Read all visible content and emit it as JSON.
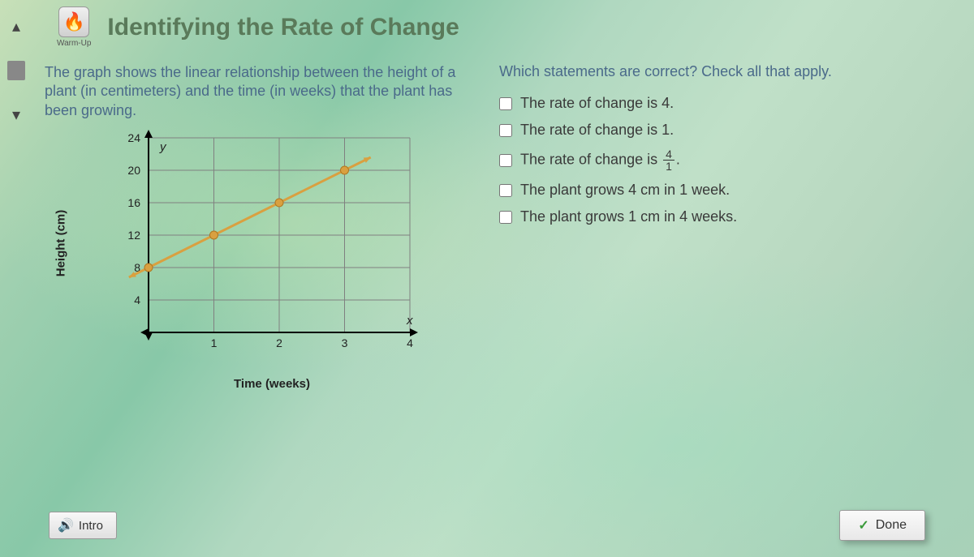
{
  "header": {
    "warmup_label": "Warm-Up",
    "title": "Identifying the Rate of Change"
  },
  "prompt": "The graph shows the linear relationship between the height of a plant (in centimeters) and the time (in weeks) that the plant has been growing.",
  "question": "Which statements are correct? Check all that apply.",
  "options": [
    {
      "text": "The rate of change is 4.",
      "frac": null
    },
    {
      "text": "The rate of change is 1.",
      "frac": null
    },
    {
      "text_prefix": "The rate of change is ",
      "frac": {
        "num": "4",
        "den": "1"
      },
      "text_suffix": "."
    },
    {
      "text": "The plant grows 4 cm in 1 week.",
      "frac": null
    },
    {
      "text": "The plant grows 1 cm in 4 weeks.",
      "frac": null
    }
  ],
  "chart": {
    "type": "line",
    "xlabel": "Time (weeks)",
    "ylabel": "Height (cm)",
    "y_axis_var": "y",
    "x_axis_var": "x",
    "xlim": [
      0,
      4
    ],
    "ylim": [
      0,
      24
    ],
    "ytick_step": 4,
    "xtick_step": 1,
    "yticks": [
      4,
      8,
      12,
      16,
      20,
      24
    ],
    "xticks": [
      1,
      2,
      3,
      4
    ],
    "points": [
      {
        "x": 0,
        "y": 8
      },
      {
        "x": 1,
        "y": 12
      },
      {
        "x": 2,
        "y": 16
      },
      {
        "x": 3,
        "y": 20
      }
    ],
    "line_start": {
      "x": -0.3,
      "y": 6.8
    },
    "line_end": {
      "x": 3.4,
      "y": 21.6
    },
    "line_color": "#d9a040",
    "line_width": 3,
    "marker_color": "#d9a040",
    "marker_radius": 5,
    "grid_color": "#808080",
    "axis_color": "#000000",
    "background": "transparent",
    "label_fontsize": 15,
    "tick_fontsize": 14
  },
  "buttons": {
    "intro": "Intro",
    "done": "Done"
  }
}
